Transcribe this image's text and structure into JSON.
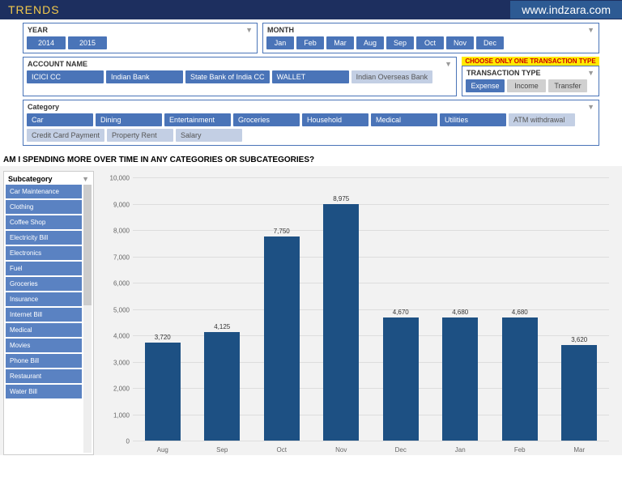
{
  "header": {
    "title": "TRENDS",
    "url": "www.indzara.com"
  },
  "year": {
    "label": "YEAR",
    "items": [
      "2014",
      "2015"
    ]
  },
  "month": {
    "label": "MONTH",
    "items": [
      "Jan",
      "Feb",
      "Mar",
      "Aug",
      "Sep",
      "Oct",
      "Nov",
      "Dec"
    ]
  },
  "account": {
    "label": "ACCOUNT NAME",
    "items": [
      {
        "label": "ICICI CC",
        "active": true
      },
      {
        "label": "Indian Bank",
        "active": true
      },
      {
        "label": "State Bank of India CC",
        "active": true
      },
      {
        "label": "WALLET",
        "active": true
      },
      {
        "label": "Indian Overseas Bank",
        "active": false
      }
    ]
  },
  "trans": {
    "hint": "CHOOSE ONLY ONE TRANSACTION TYPE",
    "label": "TRANSACTION TYPE",
    "items": [
      {
        "label": "Expense",
        "style": "active"
      },
      {
        "label": "Income",
        "style": "gray"
      },
      {
        "label": "Transfer",
        "style": "gray"
      }
    ]
  },
  "category": {
    "label": "Category",
    "items": [
      {
        "label": "Car",
        "active": true
      },
      {
        "label": "Dining",
        "active": true
      },
      {
        "label": "Entertainment",
        "active": true
      },
      {
        "label": "Groceries",
        "active": true
      },
      {
        "label": "Household",
        "active": true
      },
      {
        "label": "Medical",
        "active": true
      },
      {
        "label": "Utilities",
        "active": true
      },
      {
        "label": "ATM withdrawal",
        "active": false
      },
      {
        "label": "Credit Card Payment",
        "active": false
      },
      {
        "label": "Property Rent",
        "active": false
      },
      {
        "label": "Salary",
        "active": false
      }
    ]
  },
  "question": "AM I SPENDING MORE OVER TIME IN ANY CATEGORIES OR SUBCATEGORIES?",
  "subcat": {
    "label": "Subcategory",
    "items": [
      "Car Maintenance",
      "Clothing",
      "Coffee Shop",
      "Electricity Bill",
      "Electronics",
      "Fuel",
      "Groceries",
      "Insurance",
      "Internet Bill",
      "Medical",
      "Movies",
      "Phone Bill",
      "Restaurant",
      "Water Bill"
    ]
  },
  "chart": {
    "type": "bar",
    "ymax": 10000,
    "ystep": 1000,
    "bar_color": "#1d5083",
    "grid_color": "#dddddd",
    "background": "#f2f2f2",
    "yticks": [
      "0",
      "1,000",
      "2,000",
      "3,000",
      "4,000",
      "5,000",
      "6,000",
      "7,000",
      "8,000",
      "9,000",
      "10,000"
    ],
    "data": [
      {
        "x": "Aug",
        "v": 3720,
        "label": "3,720"
      },
      {
        "x": "Sep",
        "v": 4125,
        "label": "4,125"
      },
      {
        "x": "Oct",
        "v": 7750,
        "label": "7,750"
      },
      {
        "x": "Nov",
        "v": 8975,
        "label": "8,975"
      },
      {
        "x": "Dec",
        "v": 4670,
        "label": "4,670"
      },
      {
        "x": "Jan",
        "v": 4680,
        "label": "4,680"
      },
      {
        "x": "Feb",
        "v": 4680,
        "label": "4,680"
      },
      {
        "x": "Mar",
        "v": 3620,
        "label": "3,620"
      }
    ]
  }
}
